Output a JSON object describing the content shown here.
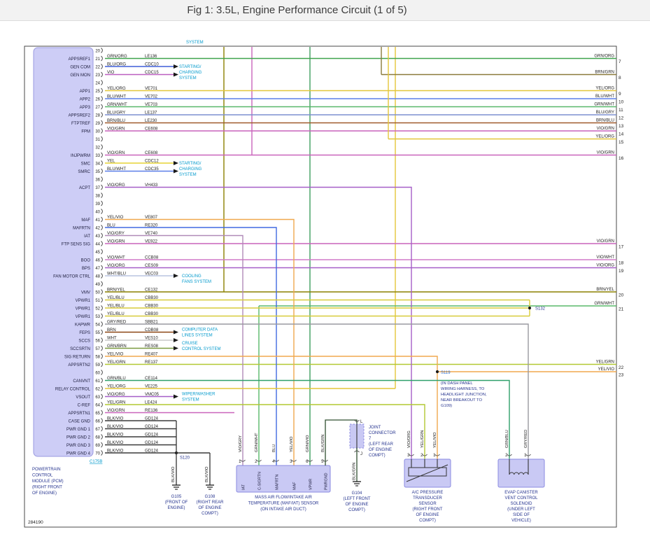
{
  "title": "Fig 1: 3.5L, Engine Performance Circuit (1 of 5)",
  "diagram_number": "284190",
  "top_partial_label": "SYSTEM",
  "wire_colors": {
    "GRN/ORG": "#3fa34d",
    "BLU/ORG": "#3f5fd8",
    "VIO": "#bb5fc0",
    "YEL/ORG": "#e3c63a",
    "BLU/WHT": "#5b7fe8",
    "GRN/WHT": "#58b86a",
    "BLU/GRY": "#7d8fd0",
    "BRN/BLU": "#a05a2c",
    "VIO/GRN": "#c964bc",
    "YEL": "#e6d335",
    "VIO/ORG": "#a55fc8",
    "YEL/VIO": "#f0a84e",
    "BLU": "#4169e1",
    "VIO/GRY": "#b08ab8",
    "VIO/WHT": "#d07ac8",
    "WHT/BLU": "#b8c4e0",
    "BRN/YEL": "#8b8000",
    "YEL/BLU": "#d8cc3a",
    "GRY/RED": "#9a9aa0",
    "BRN": "#8b4513",
    "WHT": "#c8c8c8",
    "GRN/BRN": "#7a9a40",
    "YEL/GRN": "#b2c832",
    "GRN/BLU": "#2fa06a",
    "BRN/GRN": "#8a7a3a",
    "GRN/VIO": "#3f9e5f",
    "BLK/VIO": "#3a3a3a",
    "BLK/GRN": "#2f4f2f"
  },
  "pcm": {
    "name_lines": [
      "POWERTRAIN",
      "CONTROL",
      "MODULE (PCM)",
      "(RIGHT FRONT",
      "OF ENGINE)"
    ],
    "connector_label": "C175B",
    "pins": [
      {
        "pin": "20",
        "signal": "",
        "wire": "",
        "circuit": ""
      },
      {
        "pin": "21",
        "signal": "APPSREF1",
        "wire": "GRN/ORG",
        "circuit": "LE136"
      },
      {
        "pin": "22",
        "signal": "GEN COM",
        "wire": "BLU/ORG",
        "circuit": "CDC10"
      },
      {
        "pin": "23",
        "signal": "GEN MON",
        "wire": "VIO",
        "circuit": "CDC15"
      },
      {
        "pin": "24",
        "signal": "",
        "wire": "",
        "circuit": ""
      },
      {
        "pin": "25",
        "signal": "APP1",
        "wire": "YEL/ORG",
        "circuit": "VE701"
      },
      {
        "pin": "26",
        "signal": "APP2",
        "wire": "BLU/WHT",
        "circuit": "VE702"
      },
      {
        "pin": "27",
        "signal": "APP3",
        "wire": "GRN/WHT",
        "circuit": "VE703"
      },
      {
        "pin": "28",
        "signal": "APPSREF2",
        "wire": "BLU/GRY",
        "circuit": "LE137"
      },
      {
        "pin": "29",
        "signal": "FTPTREF",
        "wire": "BRN/BLU",
        "circuit": "LE230"
      },
      {
        "pin": "30",
        "signal": "FPM",
        "wire": "VIO/GRN",
        "circuit": "CE608"
      },
      {
        "pin": "31",
        "signal": "",
        "wire": "",
        "circuit": ""
      },
      {
        "pin": "32",
        "signal": "",
        "wire": "",
        "circuit": ""
      },
      {
        "pin": "33",
        "signal": "INJPWRM",
        "wire": "VIO/GRN",
        "circuit": "CE608"
      },
      {
        "pin": "34",
        "signal": "SMC",
        "wire": "YEL",
        "circuit": "CDC12"
      },
      {
        "pin": "35",
        "signal": "SMRC",
        "wire": "BLU/WHT",
        "circuit": "CDC35"
      },
      {
        "pin": "36",
        "signal": "",
        "wire": "",
        "circuit": ""
      },
      {
        "pin": "37",
        "signal": "ACPT",
        "wire": "VIO/ORG",
        "circuit": "VH433"
      },
      {
        "pin": "38",
        "signal": "",
        "wire": "",
        "circuit": ""
      },
      {
        "pin": "39",
        "signal": "",
        "wire": "",
        "circuit": ""
      },
      {
        "pin": "40",
        "signal": "",
        "wire": "",
        "circuit": ""
      },
      {
        "pin": "41",
        "signal": "MAF",
        "wire": "YEL/VIO",
        "circuit": "VE807"
      },
      {
        "pin": "42",
        "signal": "MAFRTN",
        "wire": "BLU",
        "circuit": "RE320"
      },
      {
        "pin": "43",
        "signal": "IAT",
        "wire": "VIO/GRY",
        "circuit": "VE740"
      },
      {
        "pin": "44",
        "signal": "FTP SENS SIG",
        "wire": "VIO/GRN",
        "circuit": "VE922"
      },
      {
        "pin": "45",
        "signal": "",
        "wire": "",
        "circuit": ""
      },
      {
        "pin": "46",
        "signal": "BOO",
        "wire": "VIO/WHT",
        "circuit": "CCB08"
      },
      {
        "pin": "47",
        "signal": "BPS",
        "wire": "VIO/ORG",
        "circuit": "CES09"
      },
      {
        "pin": "48",
        "signal": "FAN MOTOR CTRL",
        "wire": "WHT/BLU",
        "circuit": "VEC03"
      },
      {
        "pin": "49",
        "signal": "",
        "wire": "",
        "circuit": ""
      },
      {
        "pin": "50",
        "signal": "VMV",
        "wire": "BRN/YEL",
        "circuit": "CE132"
      },
      {
        "pin": "51",
        "signal": "VPWR1",
        "wire": "YEL/BLU",
        "circuit": "CBB30"
      },
      {
        "pin": "52",
        "signal": "VPWR1",
        "wire": "YEL/BLU",
        "circuit": "CBB30"
      },
      {
        "pin": "53",
        "signal": "VPWR1",
        "wire": "YEL/BLU",
        "circuit": "CBB30"
      },
      {
        "pin": "54",
        "signal": "KAPWR",
        "wire": "GRY/RED",
        "circuit": "SBB21"
      },
      {
        "pin": "55",
        "signal": "FEPS",
        "wire": "BRN",
        "circuit": "CDB08"
      },
      {
        "pin": "56",
        "signal": "SCCS",
        "wire": "WHT",
        "circuit": "VES10"
      },
      {
        "pin": "57",
        "signal": "SCCSRTN",
        "wire": "GRN/BRN",
        "circuit": "RES08"
      },
      {
        "pin": "58",
        "signal": "SIG RETURN",
        "wire": "YEL/VIO",
        "circuit": "RE407"
      },
      {
        "pin": "59",
        "signal": "APPSRTN2",
        "wire": "YEL/GRN",
        "circuit": "RE137"
      },
      {
        "pin": "60",
        "signal": "",
        "wire": "",
        "circuit": ""
      },
      {
        "pin": "61",
        "signal": "CANVNT",
        "wire": "GRN/BLU",
        "circuit": "CE114"
      },
      {
        "pin": "62",
        "signal": "RELAY CONTROL",
        "wire": "YEL/ORG",
        "circuit": "VE225"
      },
      {
        "pin": "63",
        "signal": "VSOUT",
        "wire": "VIO/ORG",
        "circuit": "VMC05"
      },
      {
        "pin": "64",
        "signal": "C-REF",
        "wire": "YEL/GRN",
        "circuit": "LE424"
      },
      {
        "pin": "65",
        "signal": "APPSRTN1",
        "wire": "VIO/GRN",
        "circuit": "RE136"
      },
      {
        "pin": "66",
        "signal": "CASE GND",
        "wire": "BLK/VIO",
        "circuit": "GD124"
      },
      {
        "pin": "67",
        "signal": "PWR GND 1",
        "wire": "BLK/VIO",
        "circuit": "GD124"
      },
      {
        "pin": "68",
        "signal": "PWR GND 2",
        "wire": "BLK/VIO",
        "circuit": "GD124"
      },
      {
        "pin": "69",
        "signal": "PWR GND 3",
        "wire": "BLK/VIO",
        "circuit": "GD124"
      },
      {
        "pin": "70",
        "signal": "PWR GND 4",
        "wire": "BLK/VIO",
        "circuit": "GD124"
      }
    ]
  },
  "right_exits": [
    {
      "wire": "GRN/ORG",
      "pin": "7"
    },
    {
      "wire": "BRN/GRN",
      "pin": "8"
    },
    {
      "wire": "YEL/ORG",
      "pin": "9"
    },
    {
      "wire": "BLU/WHT",
      "pin": "10"
    },
    {
      "wire": "GRN/WHT",
      "pin": "11"
    },
    {
      "wire": "BLU/GRY",
      "pin": "12"
    },
    {
      "wire": "BRN/BLU",
      "pin": "13"
    },
    {
      "wire": "VIO/GRN",
      "pin": "14"
    },
    {
      "wire": "YEL/ORG",
      "pin": "15"
    },
    {
      "wire": "VIO/GRN",
      "pin": "16"
    },
    {
      "wire": "VIO/GRN",
      "pin": "17"
    },
    {
      "wire": "VIO/WHT",
      "pin": "18"
    },
    {
      "wire": "VIO/ORG",
      "pin": "19"
    },
    {
      "wire": "BRN/YEL",
      "pin": "20"
    },
    {
      "wire": "GRN/WHT",
      "pin": "21"
    },
    {
      "wire": "YEL/GRN",
      "pin": "22"
    },
    {
      "wire": "YEL/VIO",
      "pin": "23"
    }
  ],
  "feed_wires": [
    {
      "wire": "BRN/YEL"
    },
    {
      "wire": "VIO/GRN"
    },
    {
      "wire": "YEL/ORG"
    },
    {
      "wire": "GRN/VIO"
    }
  ],
  "system_refs": [
    {
      "lines": [
        "STARTING/",
        "CHARGING",
        "SYSTEM"
      ]
    },
    {
      "lines": [
        "STARTING/",
        "CHARGING",
        "SYSTEM"
      ]
    },
    {
      "lines": [
        "COOLING",
        "FANS SYSTEM"
      ]
    },
    {
      "lines": [
        "COMPUTER DATA",
        "LINES SYSTEM"
      ]
    },
    {
      "lines": [
        "CRUISE",
        "CONTROL SYSTEM"
      ]
    },
    {
      "lines": [
        "WIPER/WASHER",
        "SYSTEM"
      ]
    }
  ],
  "splices": [
    {
      "id": "S120"
    },
    {
      "id": "S132"
    },
    {
      "id": "S119",
      "note_lines": [
        "(IN DASH PANEL",
        "WIRING HARNESS, TO",
        "HEADLIGHT JUNCTION,",
        "NEAR BREAKOUT TO",
        "G109)"
      ]
    }
  ],
  "components": {
    "maf_sensor": {
      "pins": [
        {
          "num": "1",
          "signal": "IAT",
          "wire": "VIO/GRY"
        },
        {
          "num": "2",
          "signal": "C-SIGRTN",
          "wire": "GRN/WHT"
        },
        {
          "num": "4",
          "signal": "MAFRTN",
          "wire": "BLU"
        },
        {
          "num": "3",
          "signal": "MAF",
          "wire": "YEL/VIO"
        },
        {
          "num": "6",
          "signal": "VPWR",
          "wire": "GRN/VIO"
        },
        {
          "num": "5",
          "signal": "PWRGND",
          "wire": "BLK/GRN"
        }
      ],
      "label_lines": [
        "MASS AIR FLOW/INTAKE AIR",
        "TEMPERATURE (MAF/IAT) SENSOR",
        "(ON INTAKE AIR DUCT)"
      ]
    },
    "joint_connector": {
      "pin_top": "L",
      "pin_bottom": "J",
      "label_lines": [
        "JOINT",
        "CONNECTOR",
        "7",
        "(LEFT REAR",
        "OF ENGINE",
        "COMPT)"
      ]
    },
    "ac_transducer": {
      "pins": [
        {
          "num": "3",
          "wire": "VIO/ORG"
        },
        {
          "num": "2",
          "wire": "YEL/GRN"
        },
        {
          "num": "1",
          "wire": "YEL/VIO"
        }
      ],
      "label_lines": [
        "A/C PRESSURE",
        "TRANSDUCER",
        "SENSOR",
        "(RIGHT FRONT",
        "OF ENGINE",
        "COMPT)"
      ]
    },
    "evap_solenoid": {
      "pins": [
        {
          "num": "2",
          "wire": "GRN/BLU"
        },
        {
          "num": "1",
          "wire": "GRY/RED"
        }
      ],
      "label_lines": [
        "EVAP CANISTER",
        "VENT CONTROL",
        "SOLENOID",
        "(UNDER LEFT",
        "SIDE OF",
        "VEHICLE)"
      ]
    }
  },
  "grounds": [
    {
      "wire": "BLK/VIO",
      "label_lines": [
        "G105",
        "(FRONT OF",
        "ENGINE)"
      ]
    },
    {
      "wire": "BLK/VIO",
      "label_lines": [
        "G108",
        "(RIGHT REAR",
        "OF ENGINE",
        "COMPT)"
      ]
    },
    {
      "wire": "BLK/GRN",
      "label_lines": [
        "G104",
        "(LEFT FRONT",
        "OF ENGINE",
        "COMPT)"
      ]
    }
  ]
}
